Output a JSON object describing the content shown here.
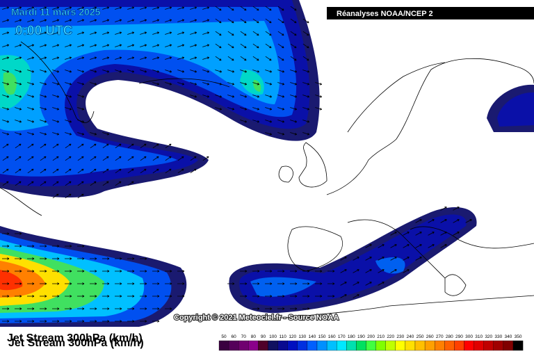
{
  "header": {
    "date": "Mardi 11 mars 2025",
    "time": "0:00 UTC",
    "source_box": "Réanalyses NOAA/NCEP 2"
  },
  "footer": {
    "copyright": "Copyright © 2021 Meteociel.fr - Source NOAA",
    "title": "Jet Stream 300hPa (km/h)"
  },
  "color_scale": [
    {
      "label": "50",
      "color": "#3a0040"
    },
    {
      "label": "60",
      "color": "#55005a"
    },
    {
      "label": "70",
      "color": "#700070"
    },
    {
      "label": "80",
      "color": "#8a008a"
    },
    {
      "label": "90",
      "color": "#50002a"
    },
    {
      "label": "100",
      "color": "#101060"
    },
    {
      "label": "110",
      "color": "#0a0a90"
    },
    {
      "label": "120",
      "color": "#0010c0"
    },
    {
      "label": "130",
      "color": "#0030e0"
    },
    {
      "label": "140",
      "color": "#0060ff"
    },
    {
      "label": "150",
      "color": "#0090ff"
    },
    {
      "label": "160",
      "color": "#00c0ff"
    },
    {
      "label": "170",
      "color": "#00e8ff"
    },
    {
      "label": "180",
      "color": "#00e0b0"
    },
    {
      "label": "190",
      "color": "#00e060"
    },
    {
      "label": "200",
      "color": "#40ff40"
    },
    {
      "label": "210",
      "color": "#80ff00"
    },
    {
      "label": "220",
      "color": "#c0ff00"
    },
    {
      "label": "230",
      "color": "#ffff00"
    },
    {
      "label": "240",
      "color": "#ffe000"
    },
    {
      "label": "250",
      "color": "#ffc000"
    },
    {
      "label": "260",
      "color": "#ffa000"
    },
    {
      "label": "270",
      "color": "#ff8000"
    },
    {
      "label": "280",
      "color": "#ff6000"
    },
    {
      "label": "290",
      "color": "#ff4000"
    },
    {
      "label": "300",
      "color": "#ff0000"
    },
    {
      "label": "310",
      "color": "#e00000"
    },
    {
      "label": "320",
      "color": "#c00000"
    },
    {
      "label": "330",
      "color": "#a00000"
    },
    {
      "label": "340",
      "color": "#800000"
    },
    {
      "label": "350",
      "color": "#000000"
    }
  ]
}
